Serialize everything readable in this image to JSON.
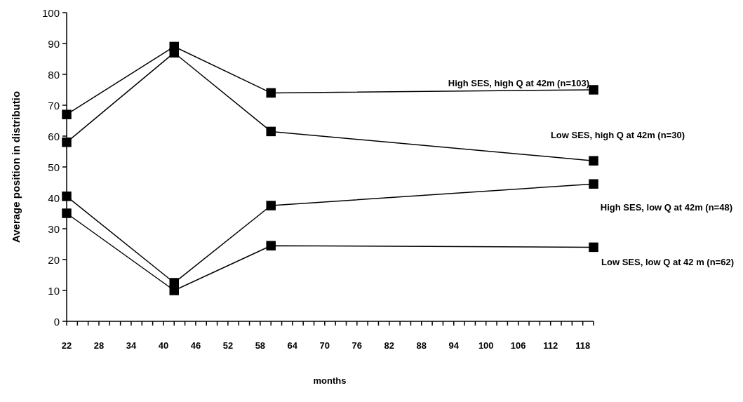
{
  "chart_data": {
    "type": "line",
    "xlabel": "months",
    "ylabel": "Average position in distributio",
    "xlim": [
      22,
      120
    ],
    "ylim": [
      0,
      100
    ],
    "xticks": [
      22,
      {
        "value": 24,
        "label": null
      },
      {
        "value": 26,
        "label": null
      },
      28,
      {
        "value": 30,
        "label": null
      },
      {
        "value": 32,
        "label": null
      },
      34,
      {
        "value": 36,
        "label": null
      },
      {
        "value": 38,
        "label": null
      },
      40,
      {
        "value": 42,
        "label": null
      },
      {
        "value": 44,
        "label": null
      },
      46,
      {
        "value": 48,
        "label": null
      },
      {
        "value": 50,
        "label": null
      },
      52,
      {
        "value": 54,
        "label": null
      },
      {
        "value": 56,
        "label": null
      },
      58,
      {
        "value": 60,
        "label": null
      },
      {
        "value": 62,
        "label": null
      },
      64,
      {
        "value": 66,
        "label": null
      },
      {
        "value": 68,
        "label": null
      },
      70,
      {
        "value": 72,
        "label": null
      },
      {
        "value": 74,
        "label": null
      },
      76,
      {
        "value": 78,
        "label": null
      },
      {
        "value": 80,
        "label": null
      },
      82,
      {
        "value": 84,
        "label": null
      },
      {
        "value": 86,
        "label": null
      },
      88,
      {
        "value": 90,
        "label": null
      },
      {
        "value": 92,
        "label": null
      },
      94,
      {
        "value": 96,
        "label": null
      },
      {
        "value": 98,
        "label": null
      },
      100,
      {
        "value": 102,
        "label": null
      },
      {
        "value": 104,
        "label": null
      },
      106,
      {
        "value": 108,
        "label": null
      },
      {
        "value": 110,
        "label": null
      },
      112,
      {
        "value": 114,
        "label": null
      },
      {
        "value": 116,
        "label": null
      },
      118,
      {
        "value": 120,
        "label": null
      }
    ],
    "yticks": [
      0,
      10,
      20,
      30,
      40,
      50,
      60,
      70,
      80,
      90,
      100
    ],
    "grid": false,
    "marker": "square",
    "line_style": "solid",
    "x": [
      22,
      42,
      60,
      120
    ],
    "series": [
      {
        "name": "High SES, high Q at 42m (n=103)",
        "color": "#000000",
        "values": [
          67,
          89,
          74,
          75
        ]
      },
      {
        "name": "Low SES, high Q at 42m (n=30)",
        "color": "#000000",
        "values": [
          58,
          87,
          61.5,
          52
        ]
      },
      {
        "name": "High SES, low Q at 42m (n=48)",
        "color": "#000000",
        "values": [
          40.5,
          12.5,
          37.5,
          44.5
        ]
      },
      {
        "name": "Low SES, low Q at 42 m (n=62)",
        "color": "#000000",
        "values": [
          35,
          10,
          24.5,
          24
        ]
      }
    ]
  }
}
